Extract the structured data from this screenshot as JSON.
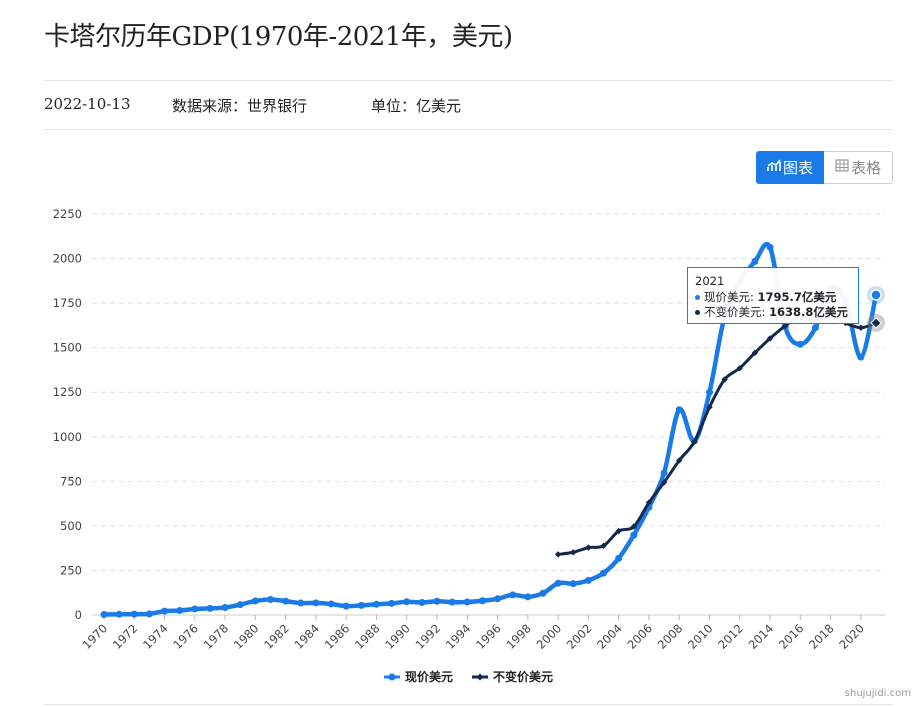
{
  "page": {
    "title": "卡塔尔历年GDP(1970年-2021年，美元)",
    "date": "2022-10-13",
    "source": "数据来源：世界银行",
    "unit": "单位：亿美元",
    "view_chart_label": "图表",
    "view_table_label": "表格",
    "watermark": "shujujidi.com"
  },
  "tooltip": {
    "year": "2021",
    "rows": [
      {
        "label": "现价美元:",
        "value": "1795.7亿美元",
        "color": "#1a7be8"
      },
      {
        "label": "不变价美元:",
        "value": "1638.8亿美元",
        "color": "#13294b"
      }
    ]
  },
  "chart_data": {
    "type": "line",
    "title": "",
    "xlabel": "",
    "ylabel": "",
    "ylim": [
      0,
      2250
    ],
    "yticks": [
      0,
      250,
      500,
      750,
      1000,
      1250,
      1500,
      1750,
      2000,
      2250
    ],
    "xticks": [
      "1970",
      "1972",
      "1974",
      "1976",
      "1978",
      "1980",
      "1982",
      "1984",
      "1986",
      "1988",
      "1990",
      "1992",
      "1994",
      "1996",
      "1998",
      "2000",
      "2002",
      "2004",
      "2006",
      "2008",
      "2010",
      "2012",
      "2014",
      "2016",
      "2018",
      "2020"
    ],
    "grid": true,
    "legend_position": "bottom",
    "series": [
      {
        "name": "现价美元",
        "color": "#1a7be8",
        "marker": "circle",
        "x": [
          1970,
          1971,
          1972,
          1973,
          1974,
          1975,
          1976,
          1977,
          1978,
          1979,
          1980,
          1981,
          1982,
          1983,
          1984,
          1985,
          1986,
          1987,
          1988,
          1989,
          1990,
          1991,
          1992,
          1993,
          1994,
          1995,
          1996,
          1997,
          1998,
          1999,
          2000,
          2001,
          2002,
          2003,
          2004,
          2005,
          2006,
          2007,
          2008,
          2009,
          2010,
          2011,
          2012,
          2013,
          2014,
          2015,
          2016,
          2017,
          2018,
          2019,
          2020,
          2021
        ],
        "y": [
          3.0,
          3.9,
          5.1,
          6.0,
          22.0,
          25.0,
          34.0,
          37.0,
          42.0,
          58.0,
          79.0,
          87.0,
          78.0,
          67.0,
          68.0,
          62.0,
          50.0,
          54.0,
          60.0,
          65.0,
          74.0,
          70.0,
          77.0,
          72.0,
          73.0,
          80.0,
          91.0,
          113.0,
          102.0,
          122.0,
          178.0,
          176.0,
          194.0,
          235.0,
          318.0,
          448.0,
          605.0,
          797.0,
          1152.0,
          976.0,
          1250.0,
          1677.0,
          1868.0,
          1984.0,
          2063.0,
          1617.0,
          1519.0,
          1612.0,
          1834.0,
          1758.0,
          1447.0,
          1795.7
        ]
      },
      {
        "name": "不变价美元",
        "color": "#13294b",
        "marker": "diamond",
        "x": [
          2000,
          2001,
          2002,
          2003,
          2004,
          2005,
          2006,
          2007,
          2008,
          2009,
          2010,
          2011,
          2012,
          2013,
          2014,
          2015,
          2016,
          2017,
          2018,
          2019,
          2020,
          2021
        ],
        "y": [
          340.0,
          352.0,
          378.0,
          388.0,
          471.0,
          496.0,
          631.0,
          744.0,
          867.0,
          972.0,
          1166.0,
          1322.0,
          1385.0,
          1471.0,
          1552.0,
          1622.0,
          1675.0,
          1651.0,
          1674.0,
          1638.0,
          1612.0,
          1638.8
        ]
      }
    ]
  }
}
